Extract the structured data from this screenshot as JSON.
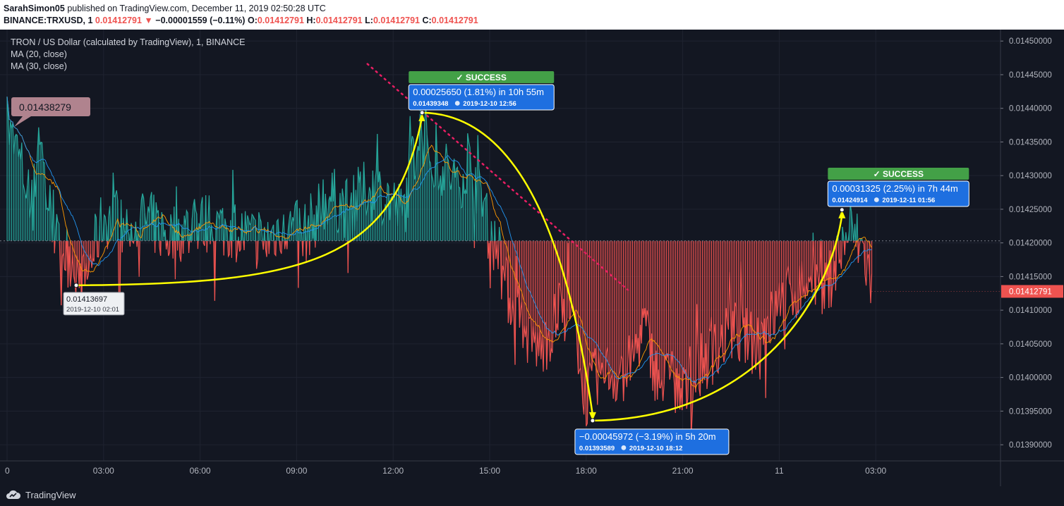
{
  "header": {
    "author": "SarahSimon05",
    "published_text": " published on TradingView.com, December 11, 2019 02:50:28 UTC",
    "symbol": "BINANCE:TRXUSD, 1",
    "last": "0.01412791",
    "change": "−0.00001559 (−0.11%)",
    "o_label": "O:",
    "o": "0.01412791",
    "h_label": "H:",
    "h": "0.01412791",
    "l_label": "L:",
    "l": "0.01412791",
    "c_label": "C:",
    "c": "0.01412791"
  },
  "legend": {
    "title": "TRON / US Dollar (calculated by TradingView), 1, BINANCE",
    "ma20": "MA (20, close)",
    "ma30": "MA (30, close)"
  },
  "footer": {
    "brand": "TradingView"
  },
  "colors": {
    "background": "#131722",
    "up": "#26a69a",
    "down": "#ef5350",
    "ma20": "#ff9800",
    "ma30": "#2196f3",
    "annotation": "#ffff00",
    "trend": "#e91e63",
    "label_blue": "#2962ff",
    "success_green": "#4caf50"
  },
  "chart_data": {
    "type": "area",
    "title": "TRON / US Dollar (calculated by TradingView), 1, BINANCE",
    "x_axis": {
      "ticks": [
        "0",
        "03:00",
        "06:00",
        "09:00",
        "12:00",
        "15:00",
        "18:00",
        "21:00",
        "11",
        "03:00"
      ],
      "tick_hours": [
        0,
        3,
        6,
        9,
        12,
        15,
        18,
        21,
        24,
        27
      ],
      "range_hours": [
        0,
        30
      ]
    },
    "y_axis": {
      "ticks": [
        "0.01390000",
        "0.01395000",
        "0.01400000",
        "0.01405000",
        "0.01410000",
        "0.01415000",
        "0.01420000",
        "0.01425000",
        "0.01430000",
        "0.01435000",
        "0.01440000",
        "0.01445000",
        "0.01450000"
      ],
      "range": [
        0.013876,
        0.014517
      ]
    },
    "baseline": 0.014203,
    "current_price": "0.01412791",
    "series": [
      {
        "name": "TRX/USD",
        "x": [
          0,
          0.4,
          0.8,
          1.0,
          1.2,
          1.6,
          2.0,
          2.4,
          3.0,
          3.6,
          4.2,
          5.0,
          6.0,
          7.0,
          8.0,
          8.6,
          9.2,
          10.0,
          10.6,
          11.2,
          11.8,
          12.3,
          12.6,
          12.9,
          13.2,
          13.6,
          14.0,
          14.4,
          14.8,
          15.2,
          15.6,
          16.0,
          16.6,
          17.2,
          17.6,
          18.0,
          18.3,
          18.6,
          19.0,
          19.4,
          19.8,
          20.2,
          20.6,
          21.0,
          21.6,
          22.0,
          22.6,
          23.2,
          23.8,
          24.2,
          24.6,
          25.0,
          25.4,
          25.8,
          26.2,
          26.6,
          26.9
        ],
        "y": [
          0.01437,
          0.01432,
          0.01425,
          0.01438,
          0.01428,
          0.01419,
          0.01418,
          0.01414,
          0.01424,
          0.01422,
          0.01424,
          0.01421,
          0.01423,
          0.01422,
          0.0142,
          0.01423,
          0.01421,
          0.01427,
          0.01425,
          0.01428,
          0.01427,
          0.01424,
          0.01432,
          0.01438,
          0.01433,
          0.01431,
          0.01429,
          0.01432,
          0.01426,
          0.01419,
          0.01412,
          0.01407,
          0.01404,
          0.0141,
          0.01408,
          0.01397,
          0.014,
          0.01401,
          0.014,
          0.01402,
          0.01408,
          0.014,
          0.01399,
          0.01397,
          0.01402,
          0.01404,
          0.01407,
          0.01405,
          0.01409,
          0.01412,
          0.01413,
          0.01415,
          0.01412,
          0.01418,
          0.01422,
          0.01419,
          0.01413
        ]
      },
      {
        "name": "MA (20, close)"
      },
      {
        "name": "MA (30, close)"
      }
    ],
    "annotations": {
      "high_label": "0.01438279",
      "low_point": {
        "price": "0.01413697",
        "time": "2019-12-10 02:01",
        "x": 2.15,
        "y": 0.01413697
      },
      "peak": {
        "text": "0.00025650 (1.81%) in 10h 55m",
        "sub": "0.01439348",
        "date": "2019-12-10  12:56",
        "status": "✓ SUCCESS",
        "x": 12.9,
        "y": 0.01439348
      },
      "bottom": {
        "text": "−0.00045972 (−3.19%) in 5h 20m",
        "sub": "0.01393589",
        "date": "2019-12-10  18:12",
        "x": 18.2,
        "y": 0.01393589
      },
      "end": {
        "text": "0.00031325 (2.25%) in 7h 44m",
        "sub": "0.01424914",
        "date": "2019-12-11  01:56",
        "status": "✓ SUCCESS",
        "x": 25.95,
        "y": 0.01424914
      },
      "trend_start": {
        "x": 11.2,
        "y": 0.014466
      },
      "trend_end": {
        "x": 19.3,
        "y": 0.01413
      }
    }
  }
}
